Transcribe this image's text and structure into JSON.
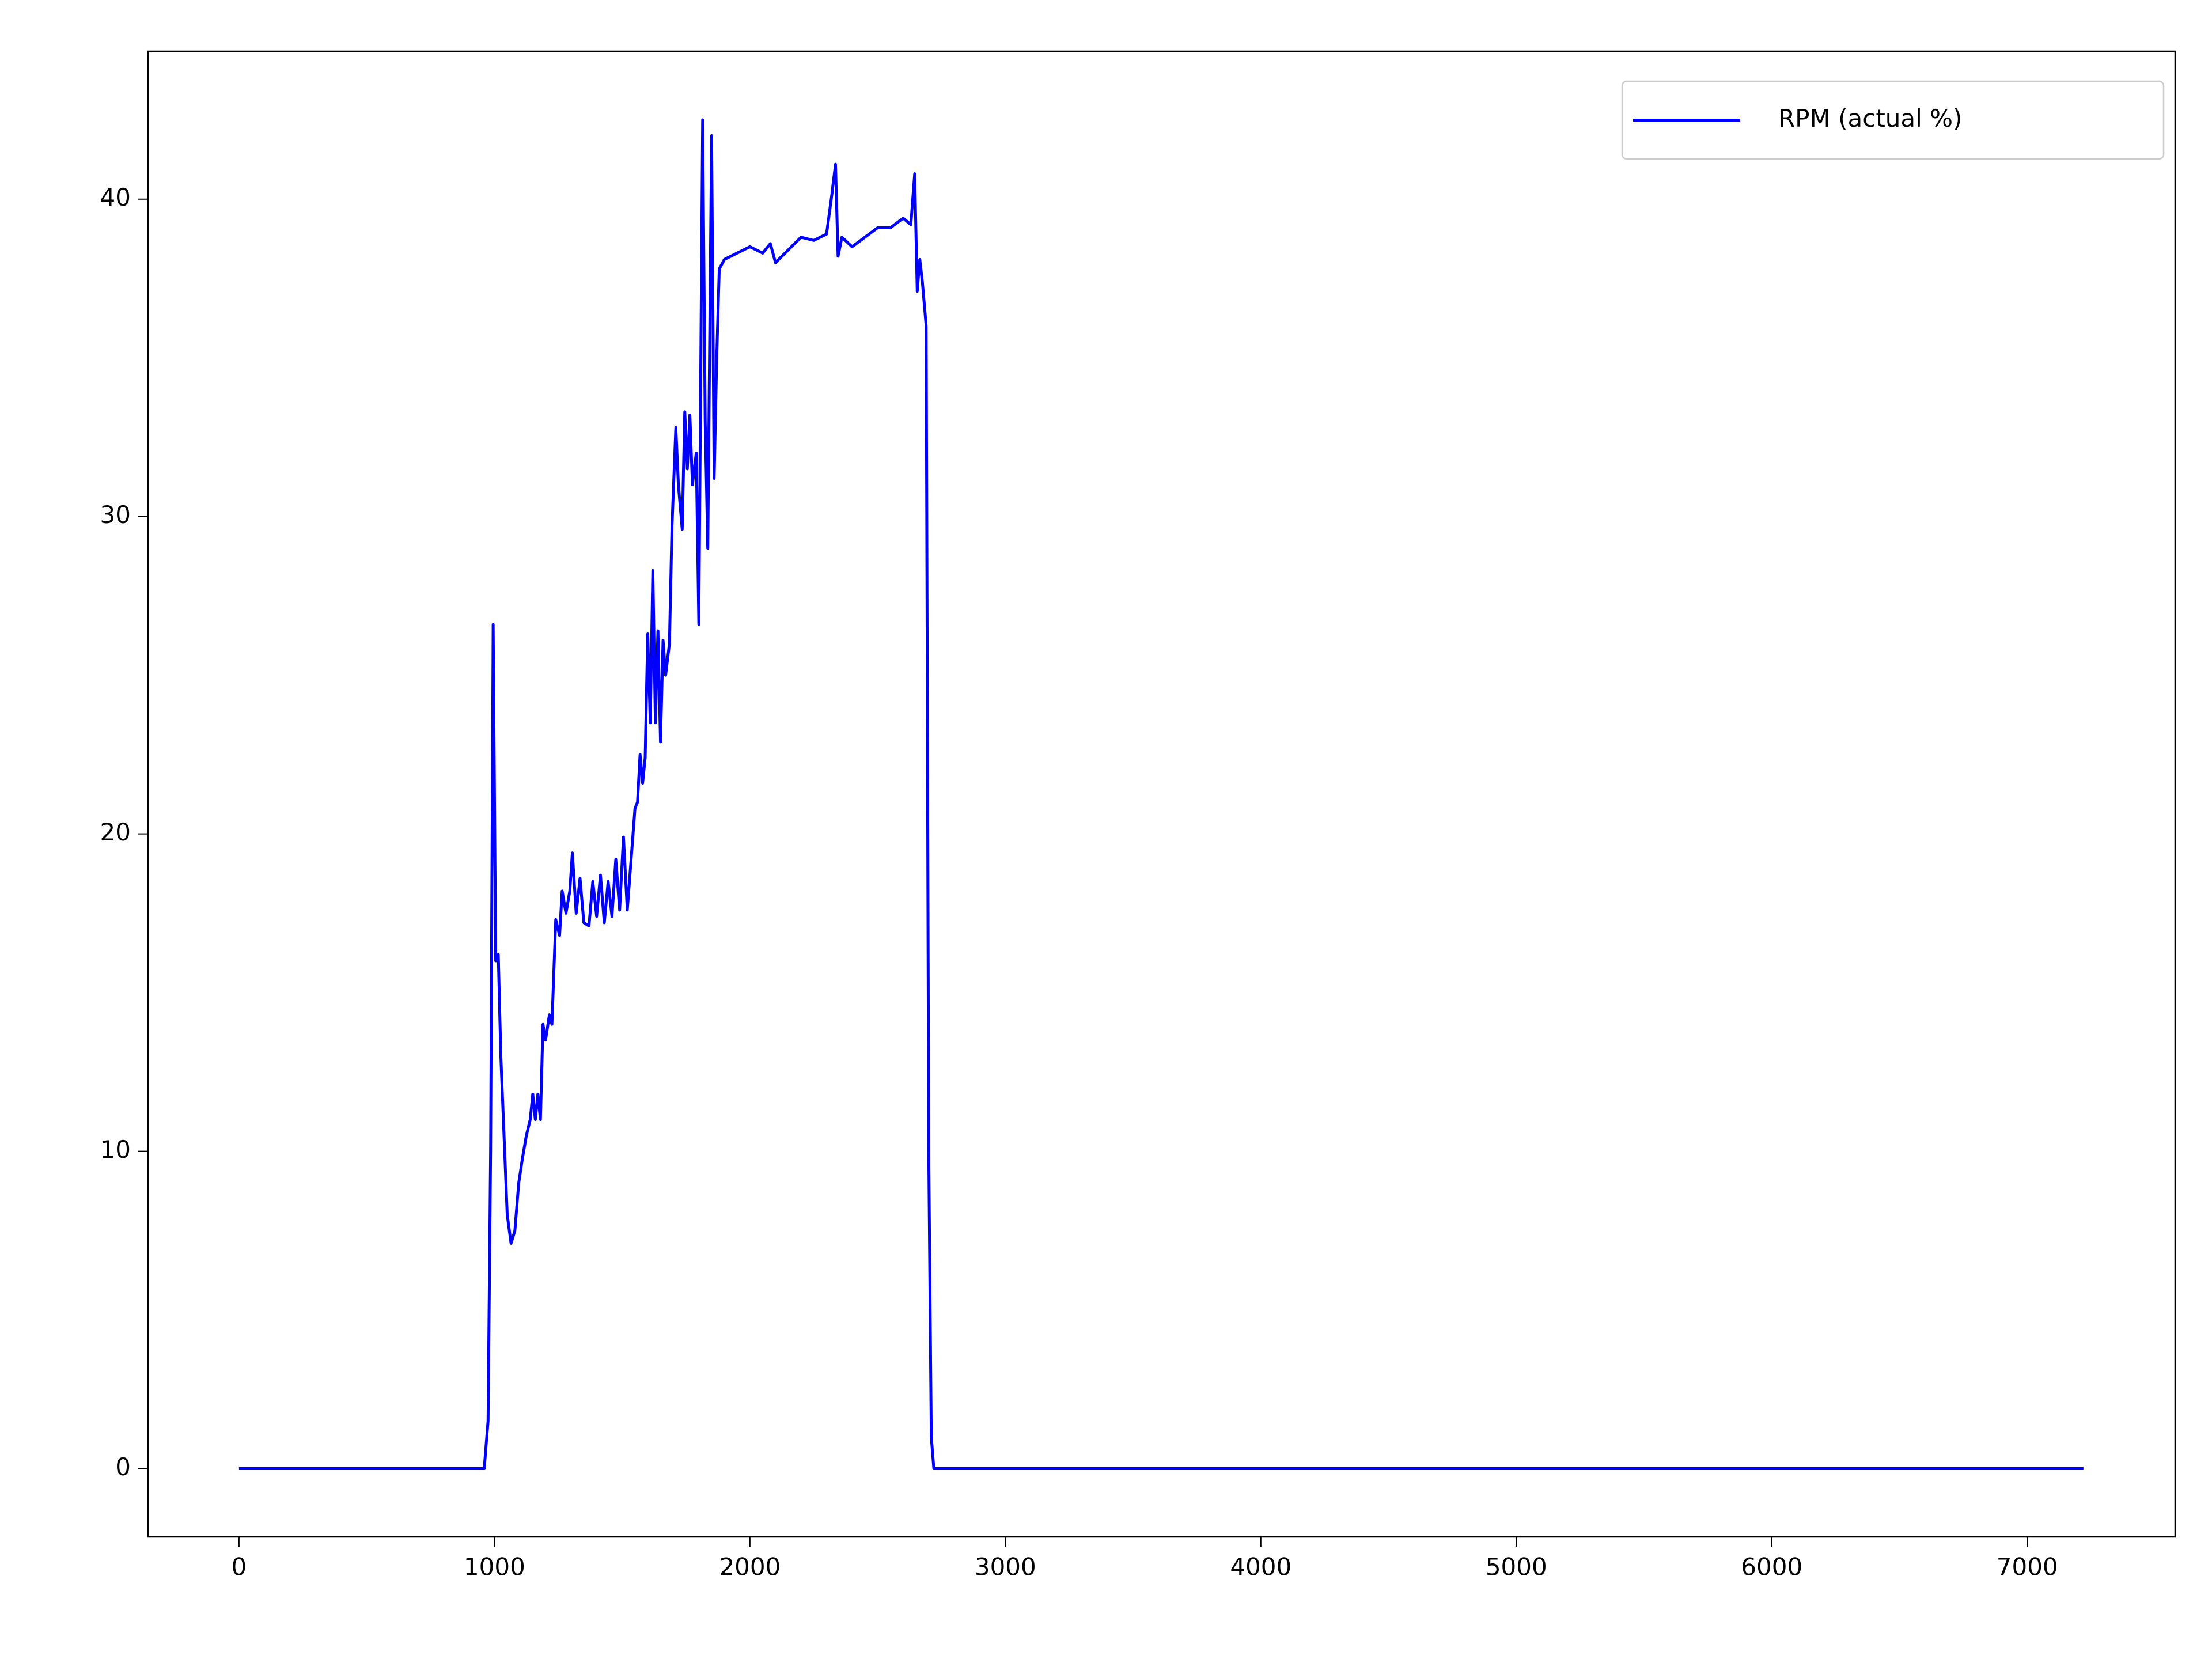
{
  "chart_data": {
    "type": "line",
    "x": [
      0,
      960,
      975,
      985,
      995,
      1005,
      1015,
      1025,
      1035,
      1050,
      1065,
      1080,
      1095,
      1110,
      1125,
      1140,
      1150,
      1160,
      1170,
      1180,
      1190,
      1200,
      1215,
      1225,
      1240,
      1255,
      1265,
      1280,
      1295,
      1305,
      1320,
      1335,
      1350,
      1370,
      1385,
      1400,
      1415,
      1430,
      1445,
      1460,
      1475,
      1490,
      1505,
      1520,
      1535,
      1550,
      1560,
      1570,
      1580,
      1590,
      1600,
      1610,
      1620,
      1630,
      1640,
      1650,
      1660,
      1670,
      1685,
      1695,
      1710,
      1720,
      1735,
      1745,
      1755,
      1765,
      1775,
      1790,
      1800,
      1815,
      1825,
      1835,
      1850,
      1860,
      1870,
      1880,
      1900,
      1950,
      2000,
      2050,
      2080,
      2100,
      2150,
      2200,
      2250,
      2300,
      2320,
      2335,
      2345,
      2360,
      2400,
      2450,
      2500,
      2550,
      2600,
      2630,
      2645,
      2655,
      2665,
      2675,
      2690,
      2700,
      2710,
      2720,
      7220
    ],
    "series": [
      {
        "name": "RPM (actual %)",
        "color": "#0000ff",
        "values": [
          0,
          0,
          1.5,
          10,
          26.6,
          16,
          16.2,
          13,
          11,
          8,
          7.1,
          7.5,
          9,
          9.8,
          10.5,
          11,
          11.8,
          11,
          11.8,
          11,
          14,
          13.5,
          14.3,
          14,
          17.3,
          16.8,
          18.2,
          17.5,
          18.2,
          19.4,
          17.5,
          18.6,
          17.2,
          17.1,
          18.5,
          17.4,
          18.7,
          17.2,
          18.5,
          17.4,
          19.2,
          17.6,
          19.9,
          17.6,
          19.2,
          20.8,
          21,
          22.5,
          21.6,
          22.4,
          26.3,
          23.5,
          28.3,
          23.5,
          26.4,
          22.9,
          26.1,
          25,
          26,
          29.7,
          32.8,
          31,
          29.6,
          33.3,
          31.5,
          33.2,
          31,
          32,
          26.6,
          42.5,
          33,
          29,
          42,
          31.2,
          35,
          37.8,
          38.1,
          38.3,
          38.5,
          38.3,
          38.6,
          38.0,
          38.4,
          38.8,
          38.7,
          38.9,
          40.1,
          41.1,
          38.2,
          38.8,
          38.5,
          38.8,
          39.1,
          39.1,
          39.4,
          39.2,
          40.8,
          37.1,
          38.1,
          37.4,
          36,
          10,
          1,
          0,
          0
        ]
      }
    ],
    "xlim": [
      -356,
      7579
    ],
    "ylim": [
      -2.15,
      44.66
    ],
    "xticks": [
      0,
      1000,
      2000,
      3000,
      4000,
      5000,
      6000,
      7000
    ],
    "yticks": [
      0,
      10,
      20,
      30,
      40
    ],
    "grid": false,
    "legend": "upper right"
  }
}
